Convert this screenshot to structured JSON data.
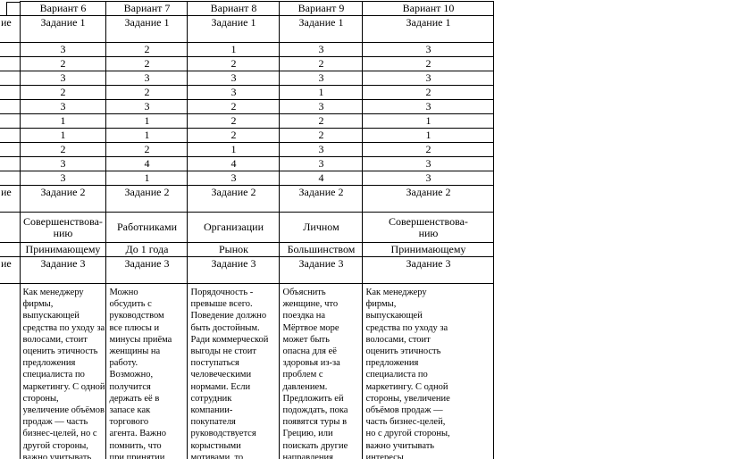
{
  "page": {
    "background": "#ffffff",
    "text_color": "#000000",
    "border_color": "#000000"
  },
  "table": {
    "stub_label": "ие",
    "header_row": [
      "Вариант 6",
      "Вариант 7",
      "Вариант 8",
      "Вариант 9",
      "Вариант 10"
    ],
    "task1_label": "Задание 1",
    "task1_answers": [
      [
        "3",
        "2",
        "1",
        "3",
        "3"
      ],
      [
        "2",
        "2",
        "2",
        "2",
        "2"
      ],
      [
        "3",
        "3",
        "3",
        "3",
        "3"
      ],
      [
        "2",
        "2",
        "3",
        "1",
        "2"
      ],
      [
        "3",
        "3",
        "2",
        "3",
        "3"
      ],
      [
        "1",
        "1",
        "2",
        "2",
        "1"
      ],
      [
        "1",
        "1",
        "2",
        "2",
        "1"
      ],
      [
        "2",
        "2",
        "1",
        "3",
        "2"
      ],
      [
        "3",
        "4",
        "4",
        "3",
        "3"
      ],
      [
        "3",
        "1",
        "3",
        "4",
        "3"
      ]
    ],
    "task2_label": "Задание 2",
    "task2_answer_row1": [
      "Совершенствова-\nнию",
      "Работниками",
      "Организации",
      "Личном",
      "Совершенствова-\nнию"
    ],
    "task2_answer_row2": [
      "Принимающему",
      "До 1 года",
      "Рынок",
      "Большинством",
      "Принимающему"
    ],
    "task3_label": "Задание 3",
    "task3_answers": [
      "Как менеджеру\nфирмы,\nвыпускающей\nсредства по уходу за\nволосами, стоит\nоценить этичность\nпредложения\nспециалиста по\nмаркетингу. С одной\nстороны,\nувеличение объёмов\nпродаж — часть\nбизнес-целей, но с\nдругой стороны,\nважно учитывать",
      "Можно\nобсудить с\nруководством\nвсе плюсы и\nминусы приёма\nженщины на\nработу.\nВозможно,\nполучится\nдержать её в\nзапасе как\nторгового\nагента. Важно\nпомнить, что\nпри принятии",
      "Порядочность -\nпревыше всего.\nПоведение должно\nбыть достойным.\nРади коммерческой\nвыгоды не стоит\nпоступаться\nчеловеческими\nнормами. Если\nсотрудник\nкомпании-\nпокупателя\nруководствуется\nкорыстными\nмотивами, то",
      "Объяснить\nженщине, что\nпоездка на\nМёртвое море\nможет быть\nопасна для её\nздоровья из-за\nпроблем с\nдавлением.\nПредложить ей\nподождать, пока\nпоявятся туры в\nГрецию, или\nпоискать другие\nнаправления,",
      "Как менеджеру\nфирмы,\nвыпускающей\nсредства по уходу за\nволосами, стоит\nоценить этичность\nпредложения\nспециалиста по\nмаркетингу. С одной\nстороны, увеличение\nобъёмов продаж —\nчасть бизнес-целей,\nно с другой стороны,\nважно учитывать\nинтересы"
    ]
  }
}
